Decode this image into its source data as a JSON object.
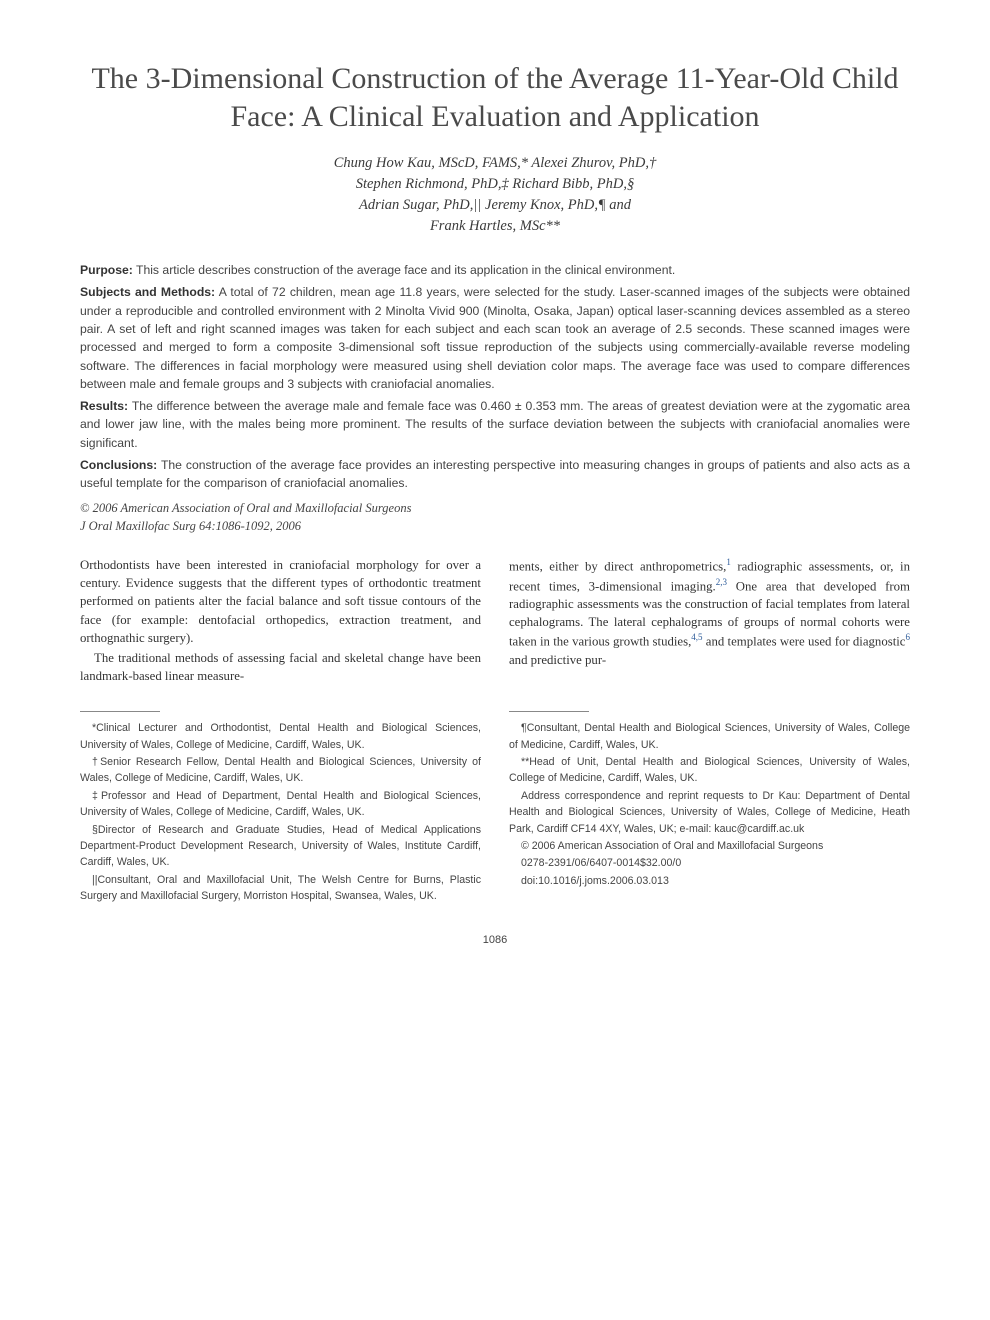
{
  "title": "The 3-Dimensional Construction of the Average 11-Year-Old Child Face: A Clinical Evaluation and Application",
  "authors": [
    "Chung How Kau, MScD, FAMS,* Alexei Zhurov, PhD,†",
    "Stephen Richmond, PhD,‡ Richard Bibb, PhD,§",
    "Adrian Sugar, PhD,|| Jeremy Knox, PhD,¶ and",
    "Frank Hartles, MSc**"
  ],
  "abstract": {
    "purpose": {
      "label": "Purpose:",
      "text": "This article describes construction of the average face and its application in the clinical environment."
    },
    "subjects": {
      "label": "Subjects and Methods:",
      "text": "A total of 72 children, mean age 11.8 years, were selected for the study. Laser-scanned images of the subjects were obtained under a reproducible and controlled environment with 2 Minolta Vivid 900 (Minolta, Osaka, Japan) optical laser-scanning devices assembled as a stereo pair. A set of left and right scanned images was taken for each subject and each scan took an average of 2.5 seconds. These scanned images were processed and merged to form a composite 3-dimensional soft tissue reproduction of the subjects using commercially-available reverse modeling software. The differences in facial morphology were measured using shell deviation color maps. The average face was used to compare differences between male and female groups and 3 subjects with craniofacial anomalies."
    },
    "results": {
      "label": "Results:",
      "text": "The difference between the average male and female face was 0.460 ± 0.353 mm. The areas of greatest deviation were at the zygomatic area and lower jaw line, with the males being more prominent. The results of the surface deviation between the subjects with craniofacial anomalies were significant."
    },
    "conclusions": {
      "label": "Conclusions:",
      "text": "The construction of the average face provides an interesting perspective into measuring changes in groups of patients and also acts as a useful template for the comparison of craniofacial anomalies."
    },
    "copyright": "© 2006 American Association of Oral and Maxillofacial Surgeons",
    "citation": "J Oral Maxillofac Surg 64:1086-1092, 2006"
  },
  "body": {
    "left": {
      "p1": "Orthodontists have been interested in craniofacial morphology for over a century. Evidence suggests that the different types of orthodontic treatment performed on patients alter the facial balance and soft tissue contours of the face (for example: dentofacial orthopedics, extraction treatment, and orthognathic surgery).",
      "p2a": "The traditional methods of assessing facial and skeletal change have been landmark-based linear measure-"
    },
    "right": {
      "p2b_pre": "ments, either by direct anthropometrics,",
      "ref1": "1",
      "p2b_mid": " radiographic assessments, or, in recent times, 3-dimensional imaging.",
      "ref23": "2,3",
      "p2b_post1": " One area that developed from radiographic assessments was the construction of facial templates from lateral cephalograms. The lateral cephalograms of groups of normal cohorts were taken in the various growth studies,",
      "ref45": "4,5",
      "p2b_post2": " and templates were used for diagnostic",
      "ref6": "6",
      "p2b_post3": " and predictive pur-"
    }
  },
  "footnotes": {
    "left": [
      "*Clinical Lecturer and Orthodontist, Dental Health and Biological Sciences, University of Wales, College of Medicine, Cardiff, Wales, UK.",
      "†Senior Research Fellow, Dental Health and Biological Sciences, University of Wales, College of Medicine, Cardiff, Wales, UK.",
      "‡Professor and Head of Department, Dental Health and Biological Sciences, University of Wales, College of Medicine, Cardiff, Wales, UK.",
      "§Director of Research and Graduate Studies, Head of Medical Applications Department-Product Development Research, University of Wales, Institute Cardiff, Cardiff, Wales, UK.",
      "||Consultant, Oral and Maxillofacial Unit, The Welsh Centre for Burns, Plastic Surgery and Maxillofacial Surgery, Morriston Hospital, Swansea, Wales, UK."
    ],
    "right": [
      "¶Consultant, Dental Health and Biological Sciences, University of Wales, College of Medicine, Cardiff, Wales, UK.",
      "**Head of Unit, Dental Health and Biological Sciences, University of Wales, College of Medicine, Cardiff, Wales, UK.",
      "Address correspondence and reprint requests to Dr Kau: Department of Dental Health and Biological Sciences, University of Wales, College of Medicine, Heath Park, Cardiff CF14 4XY, Wales, UK; e-mail: kauc@cardiff.ac.uk",
      "© 2006 American Association of Oral and Maxillofacial Surgeons",
      "0278-2391/06/6407-0014$32.00/0",
      "doi:10.1016/j.joms.2006.03.013"
    ]
  },
  "page_number": "1086",
  "colors": {
    "background": "#ffffff",
    "title": "#4a4a4a",
    "body_text": "#333333",
    "abstract_text": "#444444",
    "reference_link": "#2e5c9a"
  },
  "typography": {
    "title_fontsize": 30,
    "author_fontsize": 14.5,
    "abstract_fontsize": 12.2,
    "body_fontsize": 12.8,
    "footnote_fontsize": 10.6
  }
}
